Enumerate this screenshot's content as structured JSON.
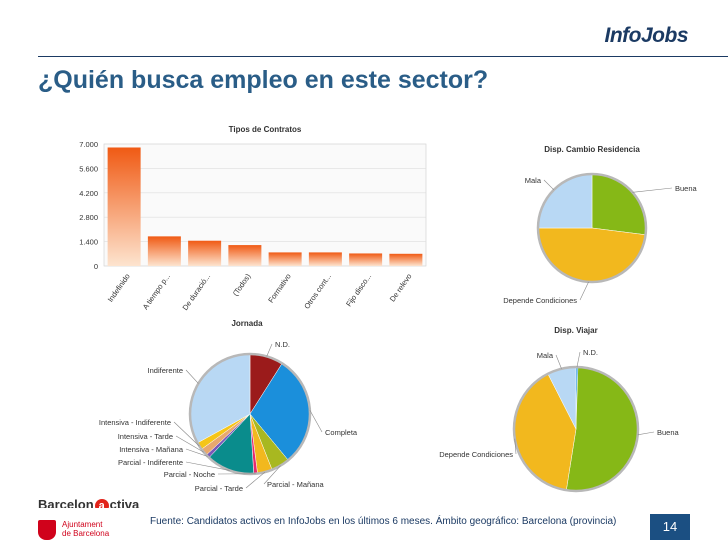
{
  "header": {
    "logo": "InfoJobs",
    "title": "¿Quién busca empleo en este sector?"
  },
  "chart_data": [
    {
      "type": "bar",
      "title": "Tipos de Contratos",
      "categories": [
        "Indefinido",
        "A tiempo p...",
        "De duració...",
        "(Todos)",
        "Formativo",
        "Otros cont...",
        "Fijo disco...",
        "De relevo"
      ],
      "values": [
        6800,
        1700,
        1450,
        1200,
        780,
        780,
        720,
        700
      ],
      "ylim": [
        0,
        7000
      ],
      "yticks": [
        "0",
        "1.400",
        "2.800",
        "4.200",
        "5.600",
        "7.000"
      ],
      "grid": true,
      "colors": {
        "bar_top": "#f05a14",
        "bar_bottom": "#fde4cf"
      }
    },
    {
      "type": "pie",
      "title": "Disp. Cambio Residencia",
      "labels": [
        "Buena",
        "Depende Condiciones",
        "Mala"
      ],
      "values": [
        27,
        48,
        25
      ],
      "colors": [
        "#86b817",
        "#f2b81e",
        "#b8d8f4"
      ]
    },
    {
      "type": "pie",
      "title": "Jornada",
      "labels": [
        "N.D.",
        "Completa",
        "Parcial - Mañana",
        "Parcial - Tarde",
        "Parcial - Noche",
        "Parcial - Indiferente",
        "Intensiva - Mañana",
        "Intensiva - Tarde",
        "Intensiva - Indiferente",
        "Indiferente"
      ],
      "values": [
        9,
        30,
        5,
        4,
        1,
        13,
        1,
        2,
        2,
        33
      ],
      "colors": [
        "#9b1b1b",
        "#1b8fdb",
        "#a8b820",
        "#f2b81e",
        "#e82a6e",
        "#0a8c8c",
        "#7a58b8",
        "#e8a86e",
        "#f5c518",
        "#b8d8f4"
      ]
    },
    {
      "type": "pie",
      "title": "Disp. Viajar",
      "labels": [
        "N.D.",
        "Buena",
        "Depende Condiciones",
        "Mala"
      ],
      "values": [
        0.5,
        52,
        40,
        7.5
      ],
      "colors": [
        "#1b8fdb",
        "#86b817",
        "#f2b81e",
        "#b8d8f4"
      ]
    }
  ],
  "footer": {
    "brand_left": "Barcelon",
    "brand_a": "a",
    "brand_right": "ctiva",
    "ajuntament_line1": "Ajuntament",
    "ajuntament_line2": "de Barcelona",
    "source": "Fuente:  Candidatos activos en InfoJobs en los últimos 6 meses.  Ámbito geográfico: Barcelona (provincia)",
    "page_number": "14"
  }
}
